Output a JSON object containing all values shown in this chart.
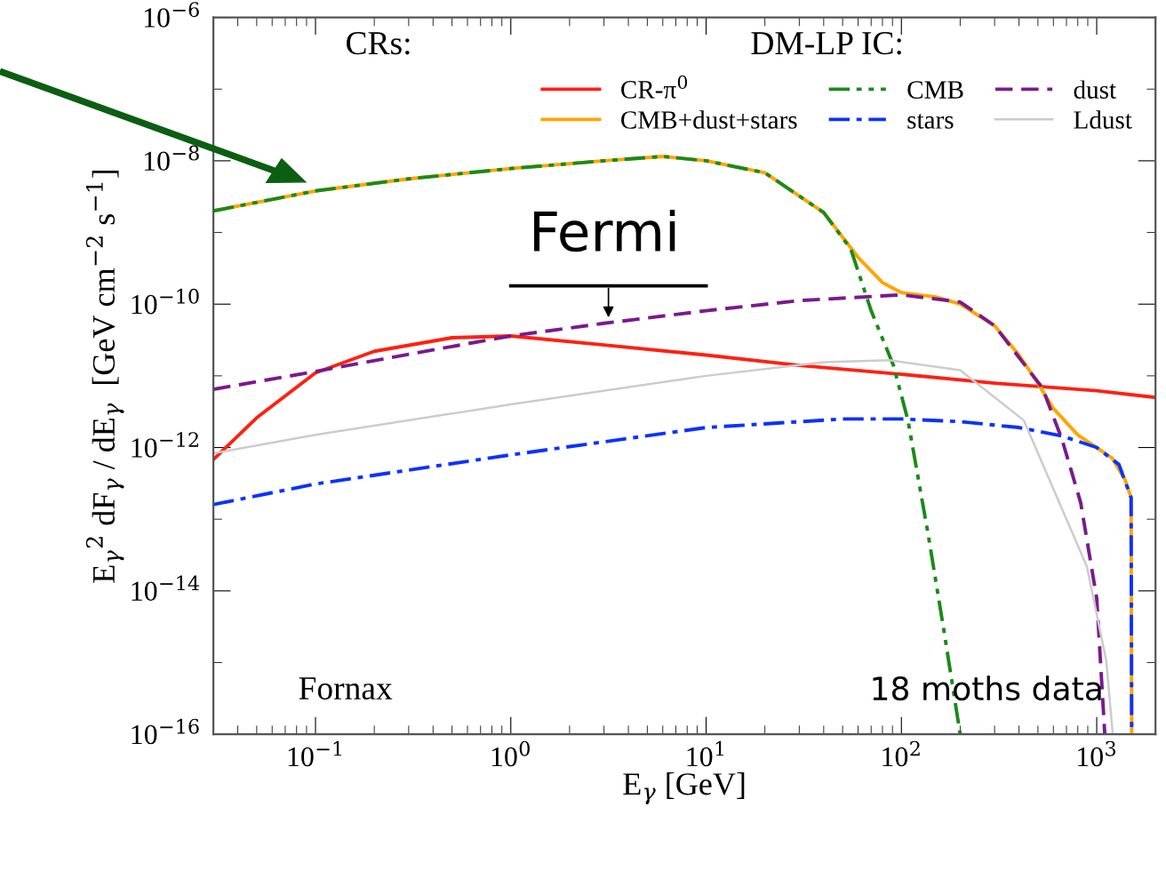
{
  "chart_data": {
    "type": "line",
    "log": "xy",
    "xlabel": "E$_{γ}$ [GeV]",
    "ylabel": "E$_{γ}$$^{2}$ dF$_{γ}$ / dE$_{γ}$  [GeV cm$^{−2}$ s$^{−1}$]",
    "xlim": [
      0.03,
      2000
    ],
    "ylim": [
      1e-16,
      1e-06
    ],
    "xticks": [
      {
        "value": 0.1,
        "label": "10$^{−1}$"
      },
      {
        "value": 1,
        "label": "10$^{0}$"
      },
      {
        "value": 10,
        "label": "10$^{1}$"
      },
      {
        "value": 100,
        "label": "10$^{2}$"
      },
      {
        "value": 1000,
        "label": "10$^{3}$"
      }
    ],
    "yticks": [
      {
        "value": 1e-16,
        "label": "10$^{−16}$"
      },
      {
        "value": 1e-14,
        "label": "10$^{−14}$"
      },
      {
        "value": 1e-12,
        "label": "10$^{−12}$"
      },
      {
        "value": 1e-10,
        "label": "10$^{−10}$"
      },
      {
        "value": 1e-08,
        "label": "10$^{−8}$"
      },
      {
        "value": 1e-06,
        "label": "10$^{−6}$"
      }
    ],
    "legend": "top right",
    "series": [
      {
        "name": "CR-π$^{0}$",
        "color": "#ff2010",
        "line_style": "solid",
        "x": [
          0.03,
          0.05,
          0.1,
          0.2,
          0.5,
          1,
          3,
          10,
          30,
          100,
          300,
          1000,
          2000
        ],
        "values": [
          6.8e-13,
          2.6e-12,
          1.1e-11,
          2.2e-11,
          3.4e-11,
          3.6e-11,
          2.7e-11,
          1.95e-11,
          1.4e-11,
          1.05e-11,
          7.9e-12,
          6.2e-12,
          5e-12
        ]
      },
      {
        "name": "CMB+dust+stars",
        "color": "#ffa500",
        "line_style": "solid",
        "x": [
          0.03,
          0.1,
          0.3,
          1,
          3,
          6,
          10,
          20,
          40,
          60,
          80,
          100,
          150,
          200,
          300,
          400,
          500,
          600,
          800,
          1000,
          1200,
          1400,
          1500,
          1510
        ],
        "values": [
          2e-09,
          3.8e-09,
          5.6e-09,
          7.8e-09,
          1e-08,
          1.15e-08,
          1e-08,
          6.8e-09,
          1.9e-09,
          4.5e-10,
          2e-10,
          1.45e-10,
          1.26e-10,
          1e-10,
          5e-11,
          1.95e-11,
          7.9e-12,
          3.5e-12,
          1.5e-12,
          1e-12,
          7.1e-13,
          3.5e-13,
          2e-13,
          1e-16
        ]
      },
      {
        "name": "CMB",
        "color": "#1a8a1a",
        "line_style": "dashdotdot",
        "x": [
          0.03,
          0.1,
          0.3,
          1,
          3,
          6,
          10,
          20,
          40,
          55,
          70,
          91,
          108,
          137,
          165,
          200
        ],
        "values": [
          2e-09,
          3.8e-09,
          5.6e-09,
          7.8e-09,
          1e-08,
          1.15e-08,
          1e-08,
          6.8e-09,
          1.9e-09,
          5.9e-10,
          8.1e-11,
          1.4e-11,
          2.4e-12,
          6.2e-14,
          2.8e-15,
          1e-16
        ]
      },
      {
        "name": "stars",
        "color": "#0a32ff",
        "line_style": "dashdot",
        "x": [
          0.03,
          0.1,
          1,
          10,
          50,
          100,
          200,
          400,
          664,
          1000,
          1300,
          1500,
          1510
        ],
        "values": [
          1.6e-13,
          3.1e-13,
          7.9e-13,
          1.9e-12,
          2.5e-12,
          2.5e-12,
          2.3e-12,
          1.9e-12,
          1.45e-12,
          1e-12,
          5.8e-13,
          2e-13,
          1e-16
        ]
      },
      {
        "name": "dust",
        "color": "#7a1a8c",
        "line_style": "dashed",
        "x": [
          0.03,
          0.1,
          0.3,
          1,
          3,
          10,
          30,
          100,
          200,
          300,
          527,
          664,
          828,
          1000,
          1100
        ],
        "values": [
          6.5e-12,
          1.15e-11,
          2e-11,
          3.6e-11,
          5.4e-11,
          8.1e-11,
          1.12e-10,
          1.35e-10,
          1.07e-10,
          5e-11,
          6.8e-12,
          1.3e-12,
          1.7e-13,
          7.9e-15,
          1e-16
        ]
      },
      {
        "name": "Ldust",
        "color": "#cccccc",
        "line_style": "solid",
        "x": [
          0.03,
          0.1,
          1,
          10,
          40,
          87,
          200,
          423,
          890,
          1120,
          1208
        ],
        "values": [
          8.3e-13,
          1.5e-12,
          4e-12,
          1e-11,
          1.55e-11,
          1.65e-11,
          1.2e-11,
          2.4e-12,
          2.2e-14,
          1.05e-15,
          1e-16
        ]
      },
      {
        "color": "#000000",
        "line_style": "solid",
        "x": [
          1,
          10
        ],
        "values": [
          1.8e-10,
          1.8e-10
        ]
      }
    ],
    "annotations": [
      "CRs:",
      "DM-LP IC:",
      "Fermi",
      "Fornax",
      "18 moths data"
    ]
  }
}
